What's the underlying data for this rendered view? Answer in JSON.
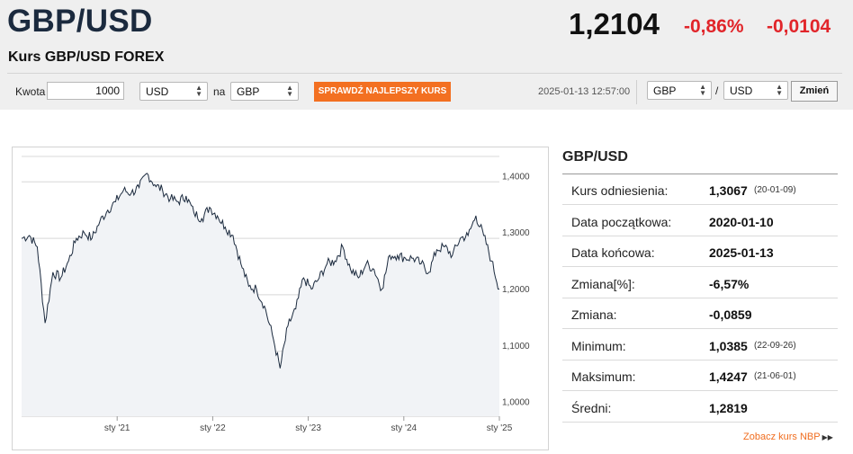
{
  "header": {
    "pair": "GBP/USD",
    "subtitle": "Kurs GBP/USD FOREX",
    "rate": "1,2104",
    "change_pct": "-0,86%",
    "change_abs": "-0,0104"
  },
  "converter": {
    "amount_label": "Kwota",
    "amount_value": "1000",
    "from_currency": "USD",
    "to_label": "na",
    "to_currency": "GBP",
    "best_rate_button": "SPRAWDŹ NAJLEPSZY KURS",
    "timestamp": "2025-01-13 12:57:00",
    "pair_from": "GBP",
    "pair_separator": "/",
    "pair_to": "USD",
    "change_button": "Zmień"
  },
  "stats": {
    "title": "GBP/USD",
    "rows": [
      {
        "label": "Kurs odniesienia:",
        "value": "1,3067",
        "date": "(20-01-09)"
      },
      {
        "label": "Data początkowa:",
        "value": "2020-01-10",
        "date": ""
      },
      {
        "label": "Data końcowa:",
        "value": "2025-01-13",
        "date": ""
      },
      {
        "label": "Zmiana[%]:",
        "value": "-6,57%",
        "date": ""
      },
      {
        "label": "Zmiana:",
        "value": "-0,0859",
        "date": ""
      },
      {
        "label": "Minimum:",
        "value": "1,0385",
        "date": "(22-09-26)"
      },
      {
        "label": "Maksimum:",
        "value": "1,4247",
        "date": "(21-06-01)"
      },
      {
        "label": "Średni:",
        "value": "1,2819",
        "date": ""
      }
    ],
    "nbp_link": "Zobacz kurs NBP"
  },
  "colors": {
    "accent_orange": "#f37021",
    "negative_red": "#e1252a",
    "line": "#1b2a3e",
    "area_fill": "#f1f3f6"
  },
  "chart_data": {
    "type": "area",
    "x_start": "2020-01",
    "x_end": "2025-01",
    "x_unit": "month",
    "x_ticks": [
      "sty '21",
      "sty '22",
      "sty '23",
      "sty '24",
      "sty '25"
    ],
    "x_tick_dates": [
      "2021-01",
      "2022-01",
      "2023-01",
      "2024-01",
      "2025-01"
    ],
    "y_ticks": [
      "1,0000",
      "1,1000",
      "1,2000",
      "1,3000",
      "1,4000"
    ],
    "y_tick_values": [
      1.0,
      1.1,
      1.2,
      1.3,
      1.4
    ],
    "ylim": [
      0.985,
      1.445
    ],
    "grid": true,
    "series": [
      {
        "values": [
          1.3,
          1.305,
          1.285,
          1.15,
          1.24,
          1.23,
          1.26,
          1.3,
          1.31,
          1.3,
          1.33,
          1.35,
          1.365,
          1.385,
          1.38,
          1.39,
          1.415,
          1.395,
          1.385,
          1.37,
          1.365,
          1.375,
          1.345,
          1.335,
          1.355,
          1.34,
          1.32,
          1.305,
          1.255,
          1.215,
          1.21,
          1.18,
          1.13,
          1.07,
          1.145,
          1.175,
          1.23,
          1.21,
          1.23,
          1.255,
          1.26,
          1.285,
          1.245,
          1.23,
          1.255,
          1.245,
          1.21,
          1.27,
          1.27,
          1.265,
          1.265,
          1.255,
          1.24,
          1.28,
          1.285,
          1.27,
          1.3,
          1.305,
          1.34,
          1.305,
          1.26,
          1.21
        ]
      }
    ]
  }
}
